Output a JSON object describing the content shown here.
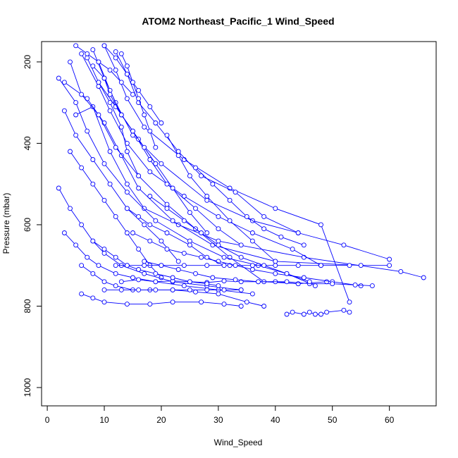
{
  "chart_data": {
    "type": "line",
    "title": "ATOM2 Northeast_Pacific_1 Wind_Speed",
    "xlabel": "Wind_Speed",
    "ylabel": "Pressure (mbar)",
    "xlim": [
      0,
      68
    ],
    "ylim": [
      1045,
      150
    ],
    "y_axis_inverted": true,
    "grid": false,
    "x_ticks": [
      0,
      10,
      20,
      30,
      40,
      50,
      60
    ],
    "y_ticks": [
      200,
      400,
      600,
      800,
      1000
    ],
    "series_color": "#0000ff",
    "marker": "open-circle",
    "series": [
      {
        "x": [
          5,
          8,
          11,
          14,
          17,
          23,
          30,
          45,
          62,
          66
        ],
        "y": [
          330,
          310,
          420,
          500,
          560,
          600,
          640,
          680,
          715,
          730
        ]
      },
      {
        "x": [
          3,
          7,
          10,
          13,
          16,
          22,
          29,
          40,
          55,
          60
        ],
        "y": [
          250,
          290,
          350,
          430,
          510,
          590,
          650,
          690,
          700,
          700
        ]
      },
      {
        "x": [
          8,
          10,
          12,
          15,
          20,
          28,
          36,
          44,
          52,
          60
        ],
        "y": [
          170,
          240,
          300,
          380,
          450,
          540,
          590,
          620,
          650,
          685
        ]
      },
      {
        "x": [
          10,
          12,
          14,
          17,
          24,
          32,
          40,
          48,
          53
        ],
        "y": [
          160,
          220,
          290,
          360,
          440,
          510,
          560,
          600,
          790
        ]
      },
      {
        "x": [
          4,
          6,
          9,
          12,
          16,
          21,
          26,
          32,
          38,
          44,
          49
        ],
        "y": [
          200,
          280,
          330,
          410,
          480,
          550,
          610,
          680,
          740,
          745,
          740
        ]
      },
      {
        "x": [
          6,
          9,
          11,
          14,
          18,
          24,
          30,
          36,
          43,
          48
        ],
        "y": [
          180,
          260,
          320,
          400,
          470,
          530,
          580,
          620,
          660,
          700
        ]
      },
      {
        "x": [
          2,
          5,
          7,
          10,
          14,
          19,
          25,
          31,
          37,
          42,
          47
        ],
        "y": [
          240,
          300,
          370,
          450,
          520,
          590,
          640,
          680,
          700,
          720,
          750
        ]
      },
      {
        "x": [
          12,
          14,
          16,
          19,
          23,
          27,
          33,
          38,
          44
        ],
        "y": [
          175,
          230,
          300,
          350,
          420,
          480,
          520,
          580,
          620
        ]
      },
      {
        "x": [
          7,
          9,
          12,
          15,
          18,
          21,
          26,
          30,
          34
        ],
        "y": [
          190,
          250,
          310,
          370,
          440,
          500,
          560,
          610,
          650
        ]
      },
      {
        "x": [
          9,
          11,
          13,
          16,
          19,
          22,
          25,
          28
        ],
        "y": [
          200,
          270,
          330,
          390,
          450,
          510,
          570,
          620
        ]
      },
      {
        "x": [
          3,
          5,
          8,
          11,
          14,
          17,
          20,
          23
        ],
        "y": [
          320,
          380,
          440,
          500,
          560,
          600,
          640,
          690
        ]
      },
      {
        "x": [
          4,
          6,
          8,
          10,
          12,
          14,
          16,
          18,
          20
        ],
        "y": [
          420,
          460,
          500,
          540,
          580,
          620,
          660,
          700,
          730
        ]
      },
      {
        "x": [
          2,
          4,
          6,
          8,
          10,
          13,
          17,
          22,
          28,
          34
        ],
        "y": [
          510,
          560,
          600,
          640,
          670,
          700,
          720,
          740,
          750,
          760
        ]
      },
      {
        "x": [
          3,
          5,
          7,
          9,
          12,
          15,
          19,
          24,
          30,
          36
        ],
        "y": [
          620,
          650,
          680,
          700,
          720,
          730,
          740,
          750,
          760,
          770
        ]
      },
      {
        "x": [
          6,
          8,
          10,
          12,
          15,
          18,
          22,
          26,
          30,
          35,
          38
        ],
        "y": [
          700,
          720,
          740,
          750,
          760,
          760,
          760,
          765,
          770,
          790,
          800
        ]
      },
      {
        "x": [
          6,
          8,
          10,
          14,
          18,
          22,
          27,
          31,
          34
        ],
        "y": [
          770,
          780,
          790,
          795,
          795,
          790,
          790,
          795,
          800
        ]
      },
      {
        "x": [
          42,
          43,
          45,
          46,
          47,
          48,
          49,
          52,
          53
        ],
        "y": [
          820,
          815,
          820,
          815,
          820,
          820,
          815,
          810,
          815
        ]
      },
      {
        "x": [
          12,
          14,
          17,
          20,
          24,
          28,
          32,
          36,
          40,
          44,
          48,
          53
        ],
        "y": [
          700,
          700,
          700,
          700,
          700,
          700,
          700,
          700,
          700,
          700,
          700,
          700
        ]
      },
      {
        "x": [
          13,
          16,
          19,
          22,
          25,
          28,
          31,
          34,
          37,
          40,
          44
        ],
        "y": [
          740,
          735,
          740,
          738,
          740,
          742,
          738,
          740,
          740,
          740,
          745
        ]
      },
      {
        "x": [
          10,
          13,
          16,
          19,
          22,
          25,
          28,
          31,
          34
        ],
        "y": [
          760,
          760,
          760,
          760,
          760,
          760,
          760,
          760,
          760
        ]
      },
      {
        "x": [
          15,
          18,
          21,
          24,
          27,
          30,
          33,
          36,
          40,
          45,
          50,
          55
        ],
        "y": [
          620,
          640,
          660,
          670,
          680,
          690,
          700,
          710,
          720,
          730,
          740,
          750
        ]
      },
      {
        "x": [
          17,
          20,
          23,
          26,
          29,
          33,
          37,
          42,
          46,
          50,
          54,
          57
        ],
        "y": [
          690,
          700,
          710,
          720,
          730,
          735,
          740,
          740,
          745,
          745,
          748,
          750
        ]
      },
      {
        "x": [
          18,
          21,
          24,
          27,
          30,
          34,
          38,
          42,
          46
        ],
        "y": [
          530,
          560,
          590,
          620,
          650,
          680,
          700,
          720,
          740
        ]
      },
      {
        "x": [
          21,
          23,
          25,
          28,
          32,
          36,
          40
        ],
        "y": [
          380,
          430,
          480,
          530,
          590,
          640,
          690
        ]
      },
      {
        "x": [
          26,
          29,
          32,
          35,
          38,
          41,
          45
        ],
        "y": [
          460,
          500,
          540,
          580,
          610,
          630,
          650
        ]
      },
      {
        "x": [
          10,
          12,
          14,
          16,
          18,
          20
        ],
        "y": [
          160,
          190,
          230,
          270,
          310,
          350
        ]
      },
      {
        "x": [
          8,
          10,
          11,
          13,
          15,
          17,
          19
        ],
        "y": [
          210,
          240,
          280,
          330,
          370,
          410,
          450
        ]
      },
      {
        "x": [
          13,
          14,
          15,
          16,
          17,
          18,
          19
        ],
        "y": [
          180,
          210,
          250,
          290,
          330,
          370,
          410
        ]
      },
      {
        "x": [
          5,
          7,
          9,
          11,
          13,
          15
        ],
        "y": [
          160,
          180,
          200,
          220,
          250,
          280
        ]
      },
      {
        "x": [
          9,
          11,
          13,
          14,
          16
        ],
        "y": [
          250,
          300,
          360,
          420,
          480
        ]
      },
      {
        "x": [
          14,
          16,
          18,
          21,
          25,
          28,
          31
        ],
        "y": [
          560,
          580,
          600,
          620,
          650,
          680,
          700
        ]
      },
      {
        "x": [
          8,
          10,
          12,
          14,
          16,
          19,
          22,
          25,
          28,
          30
        ],
        "y": [
          640,
          660,
          680,
          700,
          710,
          720,
          730,
          740,
          745,
          750
        ]
      }
    ]
  }
}
